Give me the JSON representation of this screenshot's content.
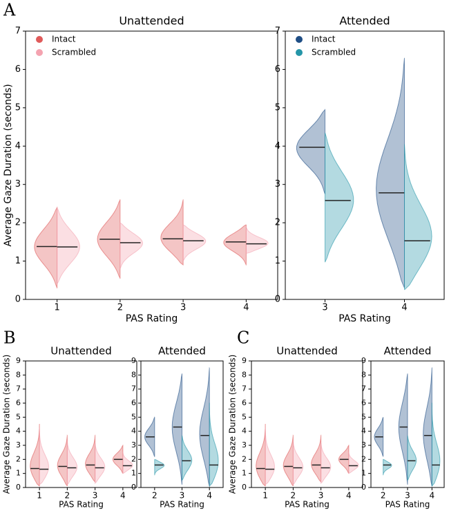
{
  "chart_data": [
    {
      "type": "violin",
      "panel_label": "A",
      "title": "Unattended",
      "xlabel": "PAS Rating",
      "ylabel": "Average Gaze Duration (seconds)",
      "categories": [
        "1",
        "2",
        "3",
        "4"
      ],
      "ylim": [
        0,
        7
      ],
      "yticks": [
        0,
        1,
        2,
        3,
        4,
        5,
        6,
        7
      ],
      "legend": "upper left",
      "series": [
        {
          "name": "Intact",
          "color": "#e05a5a",
          "medians": [
            1.38,
            1.57,
            1.58,
            1.5
          ],
          "mins": [
            0.3,
            0.55,
            0.9,
            0.9
          ],
          "maxs": [
            2.4,
            2.6,
            2.6,
            1.95
          ]
        },
        {
          "name": "Scrambled",
          "color": "#f4a3b0",
          "medians": [
            1.37,
            1.48,
            1.53,
            1.45
          ],
          "mins": [
            0.4,
            0.8,
            1.0,
            1.2
          ],
          "maxs": [
            2.4,
            2.0,
            1.95,
            1.9
          ]
        }
      ]
    },
    {
      "type": "violin",
      "title": "Attended",
      "xlabel": "PAS Rating",
      "categories": [
        "3",
        "4"
      ],
      "ylim": [
        0,
        7
      ],
      "yticks": [
        0,
        1,
        2,
        3,
        4,
        5,
        6,
        7
      ],
      "legend": "upper left",
      "series": [
        {
          "name": "Intact",
          "color": "#1f4e85",
          "medians": [
            3.97,
            2.78
          ],
          "mins": [
            2.75,
            0.3
          ],
          "maxs": [
            4.95,
            6.3
          ]
        },
        {
          "name": "Scrambled",
          "color": "#2596a8",
          "medians": [
            2.58,
            1.53
          ],
          "mins": [
            0.97,
            0.25
          ],
          "maxs": [
            4.35,
            4.05
          ]
        }
      ]
    },
    {
      "type": "violin",
      "panel_label": "B",
      "title": "Unattended",
      "xlabel": "PAS Rating",
      "ylabel": "Average Gaze Duration (seconds)",
      "categories": [
        "1",
        "2",
        "3",
        "4"
      ],
      "ylim": [
        0,
        9
      ],
      "yticks": [
        0,
        1,
        2,
        3,
        4,
        5,
        6,
        7,
        8,
        9
      ],
      "series": [
        {
          "color": "#e05a5a",
          "medians": [
            1.35,
            1.5,
            1.6,
            2.0
          ],
          "mins": [
            0.1,
            0.1,
            0.4,
            1.0
          ],
          "maxs": [
            4.5,
            3.7,
            3.7,
            3.0
          ]
        },
        {
          "color": "#f4a3b0",
          "medians": [
            1.3,
            1.4,
            1.4,
            1.55
          ],
          "mins": [
            0.2,
            0.2,
            0.3,
            1.0
          ],
          "maxs": [
            4.2,
            3.3,
            3.2,
            2.5
          ]
        }
      ]
    },
    {
      "type": "violin",
      "title": "Attended",
      "xlabel": "PAS Rating",
      "categories": [
        "2",
        "3",
        "4"
      ],
      "ylim": [
        0,
        9
      ],
      "yticks": [
        0,
        1,
        2,
        3,
        4,
        5,
        6,
        7,
        8,
        9
      ],
      "series": [
        {
          "color": "#1f4e85",
          "medians": [
            3.6,
            4.3,
            3.7
          ],
          "mins": [
            2.2,
            0.2,
            0.1
          ],
          "maxs": [
            5.0,
            8.1,
            8.5
          ]
        },
        {
          "color": "#2596a8",
          "medians": [
            1.6,
            1.9,
            1.6
          ],
          "mins": [
            0.9,
            0.5,
            0.1
          ],
          "maxs": [
            2.0,
            3.7,
            6.0
          ]
        }
      ]
    },
    {
      "type": "violin",
      "panel_label": "C",
      "title": "Unattended",
      "xlabel": "PAS Rating",
      "ylabel": "Average Gaze Duration (seconds)",
      "categories": [
        "1",
        "2",
        "3",
        "4"
      ],
      "ylim": [
        0,
        9
      ],
      "yticks": [
        0,
        1,
        2,
        3,
        4,
        5,
        6,
        7,
        8,
        9
      ],
      "series": [
        {
          "color": "#e05a5a",
          "medians": [
            1.35,
            1.5,
            1.6,
            2.0
          ],
          "mins": [
            0.1,
            0.1,
            0.4,
            1.0
          ],
          "maxs": [
            4.5,
            3.7,
            3.7,
            3.0
          ]
        },
        {
          "color": "#f4a3b0",
          "medians": [
            1.3,
            1.4,
            1.4,
            1.55
          ],
          "mins": [
            0.2,
            0.2,
            0.3,
            1.0
          ],
          "maxs": [
            4.2,
            3.3,
            3.2,
            2.5
          ]
        }
      ]
    },
    {
      "type": "violin",
      "title": "Attended",
      "xlabel": "PAS Rating",
      "categories": [
        "2",
        "3",
        "4"
      ],
      "ylim": [
        0,
        9
      ],
      "yticks": [
        0,
        1,
        2,
        3,
        4,
        5,
        6,
        7,
        8,
        9
      ],
      "series": [
        {
          "color": "#1f4e85",
          "medians": [
            3.6,
            4.3,
            3.7
          ],
          "mins": [
            2.2,
            0.2,
            0.1
          ],
          "maxs": [
            5.0,
            8.1,
            8.5
          ]
        },
        {
          "color": "#2596a8",
          "medians": [
            1.6,
            1.9,
            1.6
          ],
          "mins": [
            0.9,
            0.5,
            0.1
          ],
          "maxs": [
            2.0,
            3.7,
            6.0
          ]
        }
      ]
    }
  ]
}
